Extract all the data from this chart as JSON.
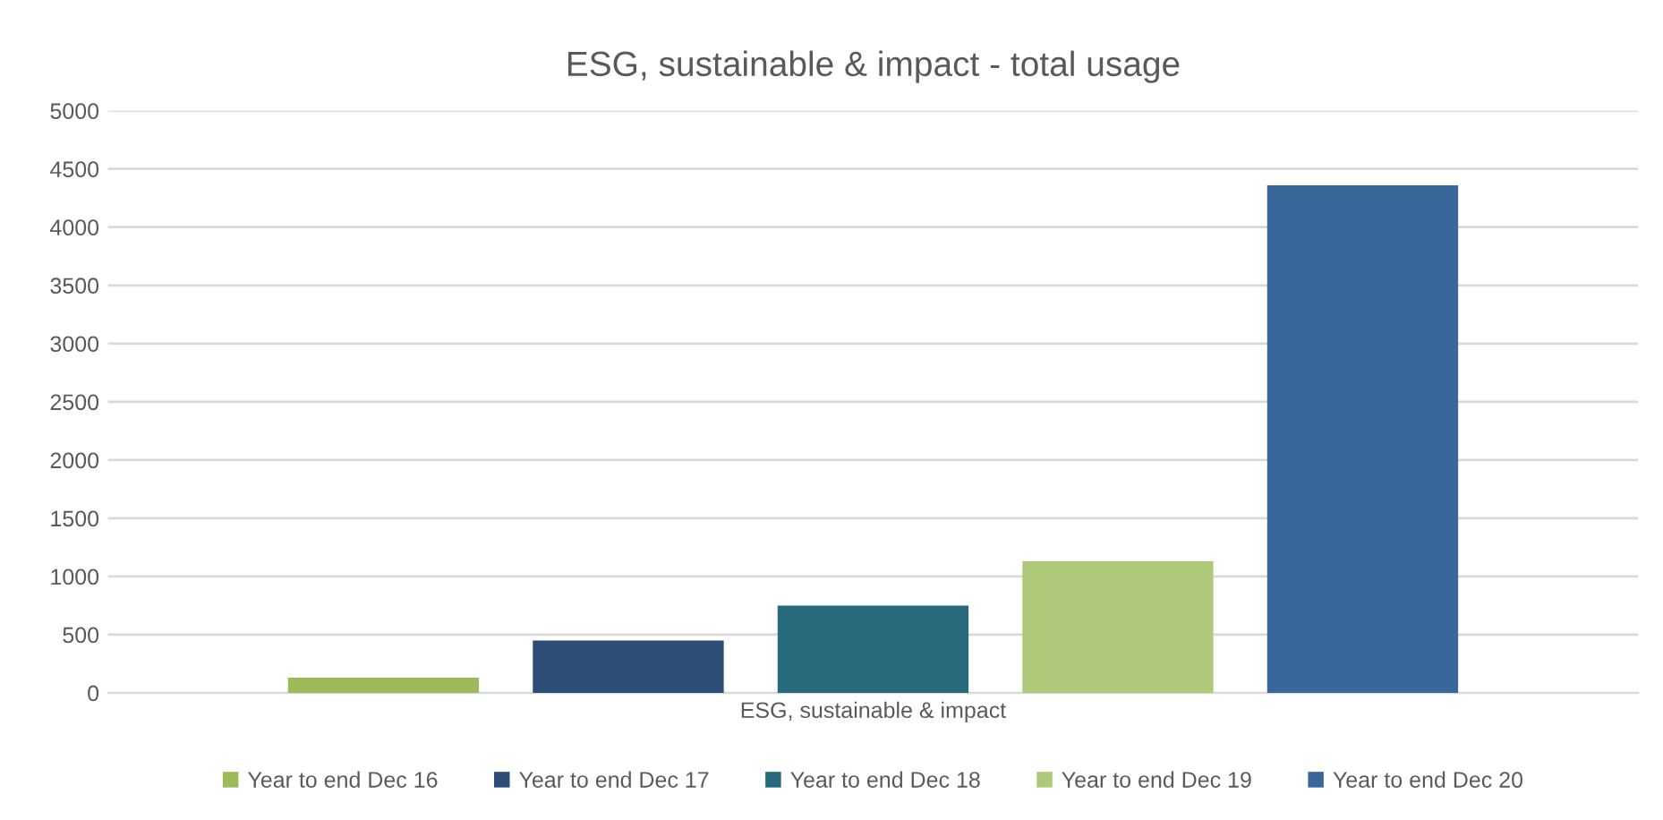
{
  "chart_data": {
    "type": "bar",
    "title": "ESG, sustainable & impact - total usage",
    "categories": [
      "ESG, sustainable & impact"
    ],
    "series": [
      {
        "name": "Year to end Dec 16",
        "color": "#9bbb59",
        "values": [
          130
        ]
      },
      {
        "name": "Year to end Dec 17",
        "color": "#2c4d75",
        "values": [
          450
        ]
      },
      {
        "name": "Year to end Dec 18",
        "color": "#276a7c",
        "values": [
          750
        ]
      },
      {
        "name": "Year to end Dec 19",
        "color": "#afc97a",
        "values": [
          1130
        ]
      },
      {
        "name": "Year to end Dec 20",
        "color": "#3a6799",
        "values": [
          4360
        ]
      }
    ],
    "ylim": [
      0,
      5000
    ],
    "yticks": [
      0,
      500,
      1000,
      1500,
      2000,
      2500,
      3000,
      3500,
      4000,
      4500,
      5000
    ],
    "grid": "y",
    "legend": "bottom"
  }
}
